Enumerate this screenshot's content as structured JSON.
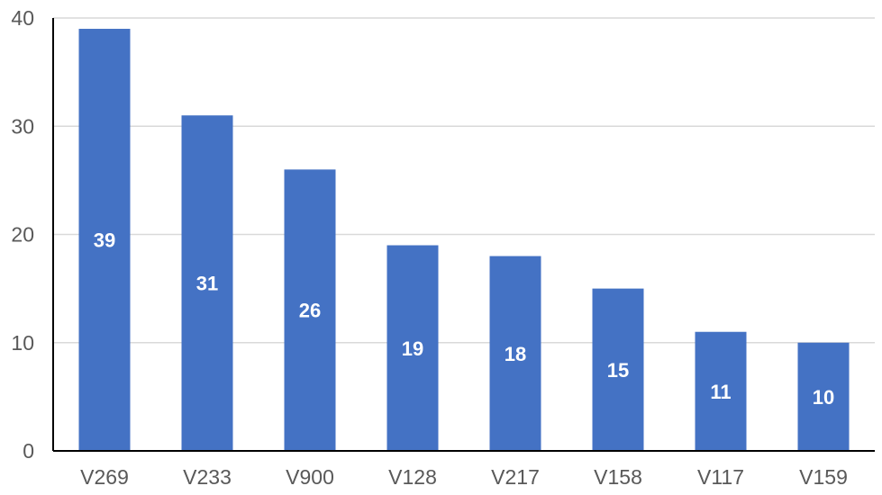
{
  "chart_data": {
    "type": "bar",
    "title": "",
    "xlabel": "",
    "ylabel": "",
    "categories": [
      "V269",
      "V233",
      "V900",
      "V128",
      "V217",
      "V158",
      "V117",
      "V159"
    ],
    "values": [
      39,
      31,
      26,
      19,
      18,
      15,
      11,
      10
    ],
    "ylim": [
      0,
      40
    ],
    "yticks": [
      0,
      10,
      20,
      30,
      40
    ],
    "grid": true,
    "legend": "none",
    "bar_color": "#4472C4",
    "data_label_color": "#FFFFFF",
    "data_labels": "center"
  }
}
